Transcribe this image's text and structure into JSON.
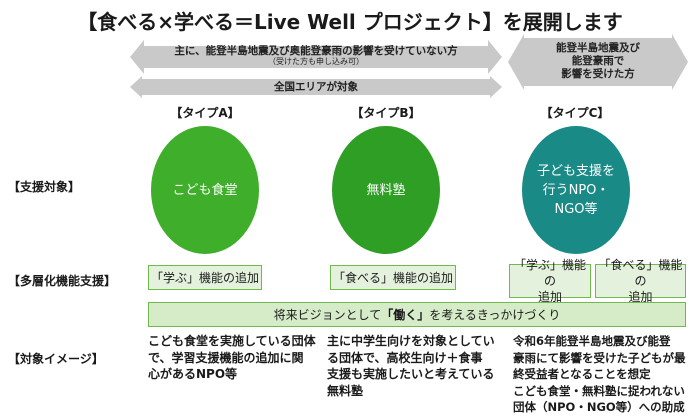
{
  "title": "【食べる×学べる＝Live Well プロジェクト】を展開します",
  "arrows": {
    "top_left": {
      "line1": "主に、能登半島地震及び奥能登豪雨の影響を受けていない方",
      "line2": "（受けた方も申し込み可）"
    },
    "top_right": {
      "line1": "能登半島地震及び",
      "line2": "能登豪雨で",
      "line3": "影響を受けた方"
    },
    "nationwide": "全国エリアが対象"
  },
  "types": [
    {
      "label": "【タイプA】",
      "circle_text_1": "こども食堂",
      "circle_text_2": "",
      "circle_text_3": "",
      "color": "#3fae2a"
    },
    {
      "label": "【タイプB】",
      "circle_text_1": "無料塾",
      "circle_text_2": "",
      "circle_text_3": "",
      "color": "#2e9e25"
    },
    {
      "label": "【タイプC】",
      "circle_text_1": "子ども支援を",
      "circle_text_2": "行うNPO・",
      "circle_text_3": "NGO等",
      "color": "#1a8a87"
    }
  ],
  "row_labels": {
    "support_target": "【支援対象】",
    "multilayer": "【多層化機能支援】",
    "image": "【対象イメージ】"
  },
  "func_boxes": {
    "a": "「学ぶ」機能の追加",
    "b": "「食べる」機能の追加",
    "c1_line1": "「学ぶ」機能の",
    "c1_line2": "追加",
    "c2_line1": "「食べる」機能の",
    "c2_line2": "追加"
  },
  "future_bar": {
    "before": "将来ビジョンとして",
    "highlight": "「働く」",
    "after": "を考えるきっかけづくり"
  },
  "images": {
    "a": [
      "こども食堂を実施している団体",
      "で、学習支援機能の追加に関",
      "心があるNPO等"
    ],
    "b": [
      "主に中学生向けを対象としてい",
      "る団体で、高校生向け＋食事",
      "支援も実施したいと考えている",
      "無料塾"
    ],
    "c": [
      "令和6年能登半島地震及び能登",
      "豪雨にて影響を受けた子どもが最",
      "終受益者となることを想定",
      "こども食堂・無料塾に捉われない",
      "団体（NPO・NGO等）への助成"
    ]
  },
  "colors": {
    "arrow_gray": "#c9c9c9",
    "box_fill": "#e4f1dc",
    "box_border": "#6fba4c",
    "bar_fill": "#d6ecc9"
  }
}
